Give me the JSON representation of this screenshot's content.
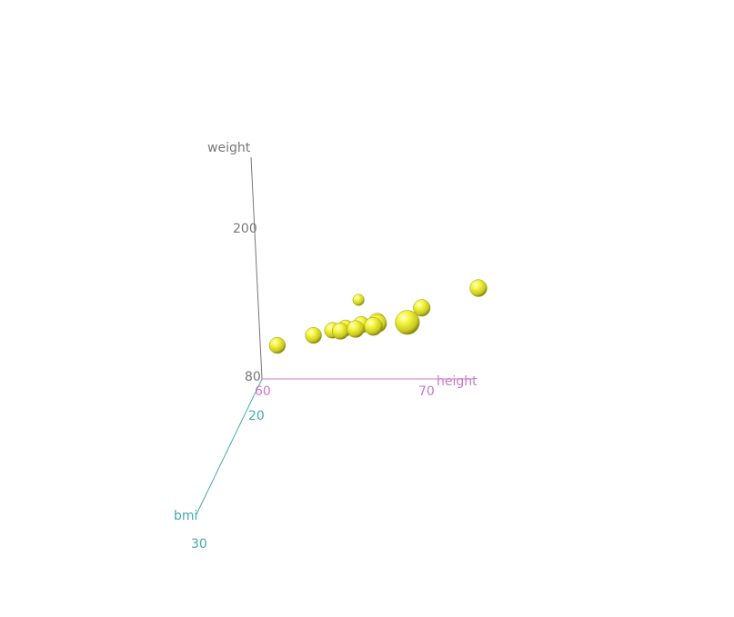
{
  "chart_data": {
    "type": "scatter",
    "title": "",
    "axes": {
      "x": {
        "label": "height",
        "ticks": [
          "60",
          "70"
        ],
        "color": "#cc77cc"
      },
      "y": {
        "label": "weight",
        "ticks": [
          "80",
          "200"
        ],
        "color": "#777777"
      },
      "z": {
        "label": "bmi",
        "ticks": [
          "20",
          "30"
        ],
        "color": "#44aaaa"
      }
    },
    "marker_color": "#eeee33",
    "points": [
      {
        "height": 61,
        "weight": 105,
        "bmi": 19.8
      },
      {
        "height": 63.5,
        "weight": 80,
        "bmi": 14
      },
      {
        "height": 63.2,
        "weight": 112,
        "bmi": 19.7
      },
      {
        "height": 64.3,
        "weight": 114,
        "bmi": 19.5
      },
      {
        "height": 65.2,
        "weight": 118,
        "bmi": 19.7
      },
      {
        "height": 65.2,
        "weight": 123,
        "bmi": 20.4
      },
      {
        "height": 66.4,
        "weight": 126,
        "bmi": 20.2
      },
      {
        "height": 66.4,
        "weight": 131,
        "bmi": 21
      },
      {
        "height": 67.8,
        "weight": 138,
        "bmi": 21.1
      },
      {
        "height": 68.1,
        "weight": 143,
        "bmi": 21.7
      },
      {
        "height": 68.1,
        "weight": 147,
        "bmi": 22.3
      },
      {
        "height": 70.4,
        "weight": 145,
        "bmi": 20.7
      },
      {
        "height": 74,
        "weight": 162,
        "bmi": 20.8
      },
      {
        "height": 73.5,
        "weight": 227,
        "bmi": 29.5
      }
    ]
  }
}
